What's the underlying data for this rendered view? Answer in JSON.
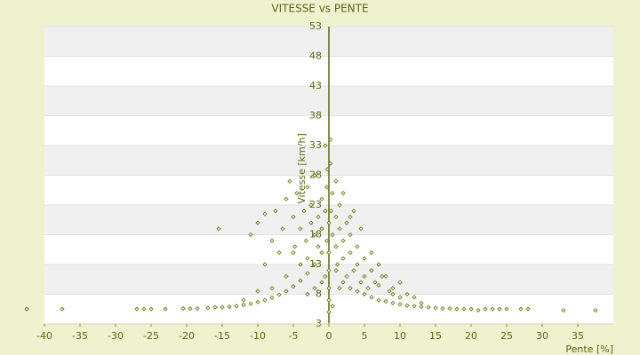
{
  "chart_data": {
    "type": "scatter",
    "title": "VITESSE vs PENTE",
    "x_label": "Pente [%]",
    "y_label": "Vitesse [km/h]",
    "color": "#6b7a1a",
    "xlim": [
      -40,
      40
    ],
    "ylim": [
      3,
      53
    ],
    "xticks": [
      -40,
      -35,
      -30,
      -25,
      -20,
      -15,
      -10,
      -5,
      0,
      5,
      10,
      15,
      20,
      25,
      30,
      35
    ],
    "yticks": [
      3,
      8,
      13,
      18,
      23,
      28,
      33,
      38,
      43,
      48,
      53
    ],
    "grid": true,
    "x": [
      -42.5,
      -37.5,
      -27,
      -26,
      -25,
      -23,
      -20.5,
      -19.5,
      -18.5,
      -17,
      -16,
      -15,
      -14,
      -13,
      -12,
      -11,
      -10,
      -9,
      -8,
      -7,
      -6,
      -5,
      -4,
      -3,
      -2,
      -1,
      -15.5,
      -11,
      -10,
      -9,
      -8,
      -7.5,
      -7,
      -6.5,
      -6,
      -5.5,
      -5,
      -4.8,
      -4.5,
      -4,
      -4,
      -3.5,
      -3.2,
      -3,
      -3,
      -2.5,
      -2.5,
      -2,
      -2,
      -1.5,
      -1.5,
      -1,
      -1,
      -0.5,
      -0.5,
      -0.3,
      -0.2,
      0,
      0,
      0,
      0.2,
      0.3,
      0.5,
      0.5,
      1,
      1,
      1.2,
      1.5,
      1.5,
      2,
      2,
      2.5,
      2.5,
      3,
      3,
      3.5,
      3.5,
      4,
      4,
      4.5,
      5,
      5,
      5.5,
      6,
      6.5,
      7,
      7,
      8,
      8.5,
      9,
      10,
      10,
      11,
      12,
      13,
      0,
      0,
      0,
      1,
      2,
      3,
      4,
      5,
      6,
      7,
      8,
      9,
      10,
      11,
      12,
      13,
      14,
      15,
      16,
      17,
      18,
      19,
      20,
      21,
      22,
      23,
      24,
      25,
      27,
      28,
      33,
      37.5,
      -1,
      -2,
      -3,
      -0.5,
      0.5,
      -8,
      -10,
      -12,
      2,
      1,
      -9,
      -6,
      -5,
      3,
      1.5,
      4.5,
      6,
      7.5,
      9,
      0.2,
      -0.3
    ],
    "values": [
      5.5,
      5.5,
      5.5,
      5.5,
      5.5,
      5.5,
      5.6,
      5.6,
      5.6,
      5.7,
      5.8,
      5.8,
      5.9,
      6,
      6.2,
      6.4,
      6.7,
      7,
      7.4,
      7.9,
      8.5,
      9.3,
      10.3,
      11.5,
      13,
      15,
      19,
      18,
      20,
      21.5,
      17,
      22,
      15,
      19,
      24,
      27,
      21,
      16,
      25,
      13,
      19,
      22,
      17,
      26,
      14,
      20,
      23,
      18,
      28,
      21,
      16,
      24,
      19,
      33,
      22,
      17,
      29,
      20,
      15,
      12,
      34,
      22,
      18,
      25,
      21,
      16,
      13,
      19,
      23,
      17,
      14,
      20,
      11,
      15,
      18,
      12,
      22,
      13,
      16,
      10,
      14,
      11,
      9,
      12,
      10,
      9.5,
      13,
      11,
      8.5,
      9,
      10,
      7.5,
      8,
      7.5,
      6.5,
      5,
      7,
      9,
      12,
      10,
      9,
      8.5,
      8,
      7.5,
      7,
      6.8,
      6.5,
      6.3,
      6.1,
      6,
      5.9,
      5.8,
      5.7,
      5.6,
      5.6,
      5.5,
      5.5,
      5.5,
      5.3,
      5.5,
      5.5,
      5.5,
      5.5,
      5.5,
      5.5,
      5.3,
      5.3,
      10,
      9,
      8,
      11,
      6,
      9,
      8.5,
      7,
      25,
      27,
      13,
      11,
      15,
      21,
      9,
      19,
      15,
      11,
      8,
      30,
      26
    ]
  }
}
